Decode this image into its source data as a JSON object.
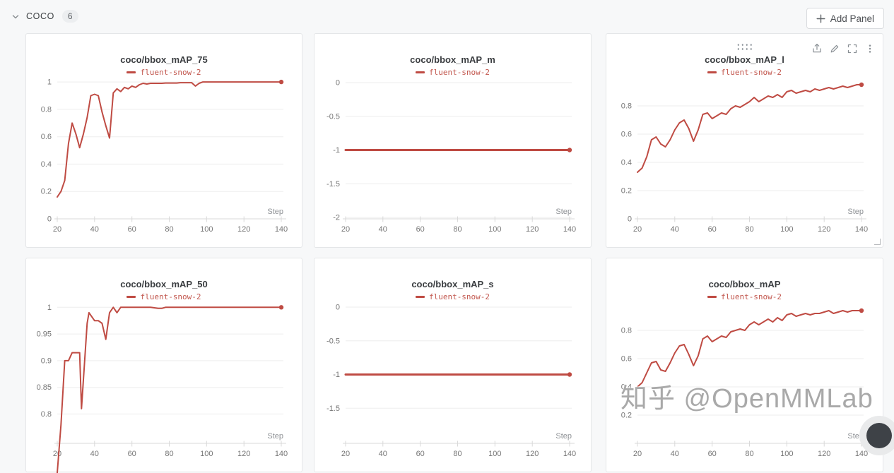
{
  "header": {
    "section_title": "coco",
    "panel_count": "6",
    "add_panel_label": "Add Panel"
  },
  "watermark": "知乎 @OpenMMLab",
  "colors": {
    "run_line": "#bf4b43",
    "legend_text": "#c2574e",
    "grid": "#ededed",
    "axis": "#d9d9d9",
    "panel_border": "#e4e6e8",
    "background": "#f7f8f9"
  },
  "chart_data": [
    {
      "type": "line",
      "title": "coco/bbox_mAP_75",
      "xlabel": "Step",
      "xlim": [
        20,
        140
      ],
      "xticks": [
        20,
        40,
        60,
        80,
        100,
        120,
        140
      ],
      "ylim": [
        0,
        1.052
      ],
      "yticks": [
        1,
        0.8,
        0.6,
        0.4,
        0.2,
        0
      ],
      "line_width": 2,
      "series": [
        {
          "name": "fluent-snow-2",
          "color": "#bf4b43",
          "points": [
            [
              20,
              0.16
            ],
            [
              22,
              0.2
            ],
            [
              24,
              0.28
            ],
            [
              26,
              0.55
            ],
            [
              28,
              0.7
            ],
            [
              30,
              0.62
            ],
            [
              32,
              0.52
            ],
            [
              34,
              0.62
            ],
            [
              36,
              0.74
            ],
            [
              38,
              0.9
            ],
            [
              40,
              0.91
            ],
            [
              42,
              0.9
            ],
            [
              44,
              0.78
            ],
            [
              46,
              0.68
            ],
            [
              48,
              0.59
            ],
            [
              50,
              0.92
            ],
            [
              52,
              0.95
            ],
            [
              54,
              0.93
            ],
            [
              56,
              0.96
            ],
            [
              58,
              0.95
            ],
            [
              60,
              0.97
            ],
            [
              62,
              0.96
            ],
            [
              64,
              0.98
            ],
            [
              66,
              0.99
            ],
            [
              68,
              0.985
            ],
            [
              70,
              0.99
            ],
            [
              72,
              0.99
            ],
            [
              74,
              0.99
            ],
            [
              76,
              0.99
            ],
            [
              78,
              0.992
            ],
            [
              80,
              0.992
            ],
            [
              82,
              0.992
            ],
            [
              84,
              0.992
            ],
            [
              86,
              0.995
            ],
            [
              88,
              0.995
            ],
            [
              90,
              0.995
            ],
            [
              92,
              0.995
            ],
            [
              94,
              0.97
            ],
            [
              96,
              0.99
            ],
            [
              98,
              1
            ],
            [
              100,
              1
            ],
            [
              105,
              1
            ],
            [
              110,
              1
            ],
            [
              115,
              1
            ],
            [
              120,
              1
            ],
            [
              125,
              1
            ],
            [
              130,
              1
            ],
            [
              135,
              1
            ],
            [
              140,
              1
            ]
          ]
        }
      ]
    },
    {
      "type": "line",
      "title": "coco/bbox_mAP_m",
      "xlabel": "Step",
      "xlim": [
        20,
        140
      ],
      "xticks": [
        20,
        40,
        60,
        80,
        100,
        120,
        140
      ],
      "ylim": [
        -2.02,
        0.115
      ],
      "yticks": [
        0,
        -0.5,
        -1,
        -1.5,
        -2
      ],
      "line_width": 3,
      "series": [
        {
          "name": "fluent-snow-2",
          "color": "#bf4b43",
          "points": [
            [
              20,
              -1
            ],
            [
              140,
              -1
            ]
          ]
        }
      ]
    },
    {
      "type": "line",
      "title": "coco/bbox_mAP_l",
      "xlabel": "Step",
      "xlim": [
        20,
        140
      ],
      "xticks": [
        20,
        40,
        60,
        80,
        100,
        120,
        140
      ],
      "ylim": [
        0,
        1.02
      ],
      "yticks": [
        0.8,
        0.6,
        0.4,
        0.2,
        0
      ],
      "line_width": 2,
      "series": [
        {
          "name": "fluent-snow-2",
          "color": "#bf4b43",
          "points": [
            [
              20,
              0.33
            ],
            [
              22.5,
              0.36
            ],
            [
              25,
              0.44
            ],
            [
              27.5,
              0.56
            ],
            [
              30,
              0.58
            ],
            [
              32.5,
              0.53
            ],
            [
              35,
              0.51
            ],
            [
              37.5,
              0.56
            ],
            [
              40,
              0.63
            ],
            [
              42.5,
              0.68
            ],
            [
              45,
              0.7
            ],
            [
              47.5,
              0.64
            ],
            [
              50,
              0.55
            ],
            [
              52.5,
              0.63
            ],
            [
              55,
              0.74
            ],
            [
              57.5,
              0.75
            ],
            [
              60,
              0.71
            ],
            [
              62.5,
              0.73
            ],
            [
              65,
              0.75
            ],
            [
              67.5,
              0.74
            ],
            [
              70,
              0.78
            ],
            [
              72.5,
              0.8
            ],
            [
              75,
              0.79
            ],
            [
              77.5,
              0.81
            ],
            [
              80,
              0.83
            ],
            [
              82.5,
              0.86
            ],
            [
              85,
              0.83
            ],
            [
              87.5,
              0.85
            ],
            [
              90,
              0.87
            ],
            [
              92.5,
              0.86
            ],
            [
              95,
              0.88
            ],
            [
              97.5,
              0.86
            ],
            [
              100,
              0.9
            ],
            [
              102.5,
              0.91
            ],
            [
              105,
              0.89
            ],
            [
              107.5,
              0.9
            ],
            [
              110,
              0.91
            ],
            [
              112.5,
              0.9
            ],
            [
              115,
              0.92
            ],
            [
              117.5,
              0.91
            ],
            [
              120,
              0.92
            ],
            [
              122.5,
              0.93
            ],
            [
              125,
              0.92
            ],
            [
              127.5,
              0.93
            ],
            [
              130,
              0.94
            ],
            [
              132.5,
              0.93
            ],
            [
              135,
              0.94
            ],
            [
              137.5,
              0.95
            ],
            [
              140,
              0.95
            ]
          ]
        }
      ]
    },
    {
      "type": "line",
      "title": "coco/bbox_mAP_50",
      "xlabel": "Step",
      "xlim": [
        20,
        140
      ],
      "xticks": [
        20,
        40,
        60,
        80,
        100,
        120,
        140
      ],
      "ylim": [
        0.745,
        1.015
      ],
      "yticks": [
        1,
        0.95,
        0.9,
        0.85,
        0.8
      ],
      "line_width": 2,
      "series": [
        {
          "name": "fluent-snow-2",
          "color": "#bf4b43",
          "points": [
            [
              20,
              0.69
            ],
            [
              22,
              0.78
            ],
            [
              24,
              0.9
            ],
            [
              26,
              0.9
            ],
            [
              28,
              0.915
            ],
            [
              30,
              0.915
            ],
            [
              32,
              0.915
            ],
            [
              33,
              0.81
            ],
            [
              36,
              0.97
            ],
            [
              37,
              0.99
            ],
            [
              40,
              0.975
            ],
            [
              42,
              0.975
            ],
            [
              44,
              0.97
            ],
            [
              46,
              0.94
            ],
            [
              48,
              0.99
            ],
            [
              50,
              1
            ],
            [
              52,
              0.99
            ],
            [
              54,
              1
            ],
            [
              58,
              1
            ],
            [
              62,
              1
            ],
            [
              66,
              1
            ],
            [
              70,
              1
            ],
            [
              74,
              0.998
            ],
            [
              76,
              0.998
            ],
            [
              78,
              1
            ],
            [
              82,
              1
            ],
            [
              86,
              1
            ],
            [
              90,
              1
            ],
            [
              95,
              1
            ],
            [
              100,
              1
            ],
            [
              105,
              1
            ],
            [
              110,
              1
            ],
            [
              115,
              1
            ],
            [
              120,
              1
            ],
            [
              125,
              1
            ],
            [
              130,
              1
            ],
            [
              135,
              1
            ],
            [
              140,
              1
            ]
          ]
        }
      ]
    },
    {
      "type": "line",
      "title": "coco/bbox_mAP_s",
      "xlabel": "Step",
      "xlim": [
        20,
        140
      ],
      "xticks": [
        20,
        40,
        60,
        80,
        100,
        120,
        140
      ],
      "ylim": [
        -2.02,
        0.115
      ],
      "yticks": [
        0,
        -0.5,
        -1,
        -1.5
      ],
      "line_width": 3,
      "series": [
        {
          "name": "fluent-snow-2",
          "color": "#bf4b43",
          "points": [
            [
              20,
              -1
            ],
            [
              140,
              -1
            ]
          ]
        }
      ]
    },
    {
      "type": "line",
      "title": "coco/bbox_mAP",
      "xlabel": "Step",
      "xlim": [
        20,
        140
      ],
      "xticks": [
        20,
        40,
        60,
        80,
        100,
        120,
        140
      ],
      "ylim": [
        0,
        1.02
      ],
      "yticks": [
        0.8,
        0.6,
        0.4,
        0.2
      ],
      "line_width": 2,
      "series": [
        {
          "name": "fluent-snow-2",
          "color": "#bf4b43",
          "points": [
            [
              20,
              0.4
            ],
            [
              22.5,
              0.43
            ],
            [
              25,
              0.5
            ],
            [
              27.5,
              0.57
            ],
            [
              30,
              0.58
            ],
            [
              32.5,
              0.52
            ],
            [
              35,
              0.51
            ],
            [
              37.5,
              0.57
            ],
            [
              40,
              0.64
            ],
            [
              42.5,
              0.69
            ],
            [
              45,
              0.7
            ],
            [
              47.5,
              0.63
            ],
            [
              50,
              0.55
            ],
            [
              52.5,
              0.62
            ],
            [
              55,
              0.74
            ],
            [
              57.5,
              0.76
            ],
            [
              60,
              0.72
            ],
            [
              62.5,
              0.74
            ],
            [
              65,
              0.76
            ],
            [
              67.5,
              0.75
            ],
            [
              70,
              0.79
            ],
            [
              72.5,
              0.8
            ],
            [
              75,
              0.81
            ],
            [
              77.5,
              0.8
            ],
            [
              80,
              0.84
            ],
            [
              82.5,
              0.86
            ],
            [
              85,
              0.84
            ],
            [
              87.5,
              0.86
            ],
            [
              90,
              0.88
            ],
            [
              92.5,
              0.86
            ],
            [
              95,
              0.89
            ],
            [
              97.5,
              0.87
            ],
            [
              100,
              0.91
            ],
            [
              102.5,
              0.92
            ],
            [
              105,
              0.9
            ],
            [
              107.5,
              0.91
            ],
            [
              110,
              0.92
            ],
            [
              112.5,
              0.91
            ],
            [
              115,
              0.92
            ],
            [
              117.5,
              0.92
            ],
            [
              120,
              0.93
            ],
            [
              122.5,
              0.94
            ],
            [
              125,
              0.92
            ],
            [
              127.5,
              0.93
            ],
            [
              130,
              0.94
            ],
            [
              132.5,
              0.93
            ],
            [
              135,
              0.94
            ],
            [
              137.5,
              0.94
            ],
            [
              140,
              0.94
            ]
          ]
        }
      ]
    }
  ]
}
